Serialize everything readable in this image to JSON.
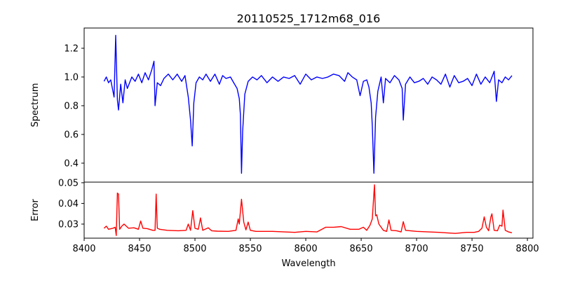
{
  "chart_data": [
    {
      "type": "line",
      "title": "20110525_1712m68_016",
      "xlabel": "",
      "ylabel": "Spectrum",
      "xlim": [
        8400,
        8805
      ],
      "ylim": [
        0.268,
        1.341
      ],
      "yticks": [
        0.4,
        0.6,
        0.8,
        1.0,
        1.2
      ],
      "ytick_labels": [
        "0.4",
        "0.6",
        "0.8",
        "1.0",
        "1.2"
      ],
      "color": "#0000ff",
      "x": [
        8418,
        8420,
        8422,
        8424,
        8426,
        8427,
        8428.5,
        8430,
        8431,
        8433,
        8435,
        8437,
        8439,
        8441,
        8443,
        8446,
        8449,
        8452,
        8455,
        8458,
        8461,
        8463,
        8464,
        8466,
        8469,
        8472,
        8476,
        8480,
        8484,
        8488,
        8491,
        8494,
        8496,
        8497.5,
        8499,
        8501,
        8504,
        8507,
        8510,
        8514,
        8518,
        8522,
        8525,
        8528,
        8532,
        8535,
        8538,
        8540,
        8541,
        8542,
        8543,
        8545,
        8548,
        8552,
        8556,
        8560,
        8565,
        8570,
        8575,
        8580,
        8585,
        8590,
        8595,
        8600,
        8605,
        8610,
        8615,
        8620,
        8625,
        8630,
        8635,
        8638,
        8642,
        8646,
        8649,
        8652,
        8655,
        8657,
        8659,
        8660,
        8661.5,
        8663,
        8665,
        8668,
        8670,
        8672,
        8676,
        8680,
        8684,
        8687,
        8688,
        8690,
        8694,
        8698,
        8702,
        8706,
        8710,
        8714,
        8718,
        8722,
        8726,
        8730,
        8734,
        8738,
        8742,
        8746,
        8750,
        8754,
        8758,
        8762,
        8766,
        8770,
        8772,
        8774,
        8777,
        8780,
        8783,
        8786
      ],
      "y": [
        0.97,
        1.0,
        0.96,
        0.98,
        0.9,
        0.86,
        1.29,
        0.84,
        0.77,
        0.95,
        0.82,
        0.98,
        0.92,
        0.96,
        1.0,
        0.97,
        1.02,
        0.96,
        1.03,
        0.98,
        1.05,
        1.11,
        0.8,
        0.96,
        0.94,
        0.99,
        1.02,
        0.98,
        1.02,
        0.97,
        1.01,
        0.86,
        0.7,
        0.52,
        0.82,
        0.96,
        1.0,
        0.98,
        1.02,
        0.97,
        1.02,
        0.95,
        1.01,
        0.99,
        1.0,
        0.96,
        0.92,
        0.85,
        0.74,
        0.33,
        0.62,
        0.88,
        0.97,
        1.0,
        0.98,
        1.01,
        0.96,
        1.0,
        0.97,
        1.0,
        0.99,
        1.01,
        0.95,
        1.02,
        0.98,
        1.0,
        0.99,
        1.0,
        1.02,
        1.01,
        0.97,
        1.03,
        1.0,
        0.98,
        0.87,
        0.97,
        0.98,
        0.93,
        0.82,
        0.66,
        0.33,
        0.72,
        0.9,
        1.0,
        0.82,
        0.99,
        0.96,
        1.01,
        0.98,
        0.92,
        0.7,
        0.95,
        1.0,
        0.96,
        0.97,
        0.99,
        0.95,
        1.0,
        0.98,
        0.95,
        1.02,
        0.93,
        1.01,
        0.96,
        0.97,
        0.99,
        0.94,
        1.02,
        0.95,
        1.0,
        0.96,
        1.04,
        0.83,
        0.98,
        0.96,
        1.0,
        0.98,
        1.01
      ]
    },
    {
      "type": "line",
      "title": "",
      "xlabel": "Wavelength",
      "ylabel": "Error",
      "xlim": [
        8400,
        8805
      ],
      "ylim": [
        0.0232,
        0.0503
      ],
      "yticks": [
        0.03,
        0.04,
        0.05
      ],
      "ytick_labels": [
        "0.03",
        "0.04",
        "0.05"
      ],
      "xticks": [
        8400,
        8450,
        8500,
        8550,
        8600,
        8650,
        8700,
        8750,
        8800
      ],
      "xtick_labels": [
        "8400",
        "8450",
        "8500",
        "8550",
        "8600",
        "8650",
        "8700",
        "8750",
        "8800"
      ],
      "color": "#ff0000",
      "x": [
        8418,
        8420,
        8422,
        8426,
        8428,
        8429,
        8430,
        8431,
        8432,
        8434,
        8436,
        8440,
        8445,
        8449,
        8451,
        8453,
        8457,
        8462,
        8464,
        8465,
        8466,
        8468,
        8475,
        8485,
        8492,
        8494,
        8496,
        8498,
        8500,
        8503,
        8505,
        8507,
        8512,
        8515,
        8520,
        8530,
        8537,
        8539,
        8540,
        8542,
        8544,
        8546,
        8548,
        8550,
        8555,
        8570,
        8590,
        8600,
        8610,
        8618,
        8625,
        8632,
        8640,
        8648,
        8652,
        8655,
        8658,
        8660,
        8662,
        8663,
        8664,
        8666,
        8670,
        8673,
        8675,
        8677,
        8682,
        8686,
        8688,
        8690,
        8700,
        8720,
        8735,
        8745,
        8752,
        8756,
        8759,
        8761,
        8763,
        8765,
        8767,
        8768,
        8770,
        8773,
        8775,
        8777,
        8778,
        8780,
        8783,
        8786
      ],
      "y": [
        0.028,
        0.029,
        0.0275,
        0.028,
        0.0285,
        0.0245,
        0.045,
        0.0445,
        0.0275,
        0.029,
        0.03,
        0.028,
        0.0282,
        0.0275,
        0.0315,
        0.028,
        0.0278,
        0.027,
        0.027,
        0.0445,
        0.028,
        0.0275,
        0.027,
        0.0268,
        0.027,
        0.03,
        0.027,
        0.0365,
        0.028,
        0.0275,
        0.033,
        0.027,
        0.0282,
        0.0268,
        0.0266,
        0.0265,
        0.027,
        0.0325,
        0.03,
        0.042,
        0.031,
        0.0272,
        0.031,
        0.027,
        0.0265,
        0.0265,
        0.026,
        0.0265,
        0.0262,
        0.0285,
        0.0285,
        0.0288,
        0.0275,
        0.0275,
        0.0285,
        0.027,
        0.0295,
        0.0325,
        0.049,
        0.034,
        0.0345,
        0.03,
        0.027,
        0.0265,
        0.032,
        0.027,
        0.0268,
        0.0262,
        0.0312,
        0.027,
        0.0265,
        0.026,
        0.0255,
        0.026,
        0.026,
        0.0265,
        0.028,
        0.0335,
        0.0285,
        0.0268,
        0.0335,
        0.035,
        0.027,
        0.0268,
        0.0295,
        0.029,
        0.0368,
        0.027,
        0.0262,
        0.0258
      ]
    }
  ]
}
